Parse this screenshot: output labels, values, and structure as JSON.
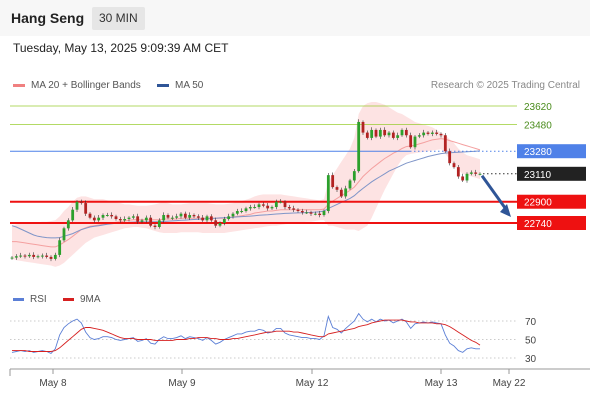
{
  "header": {
    "title": "Hang Seng",
    "timeframe": "30 MIN"
  },
  "datetime": "Tuesday, May 13, 2025 9:09:39 AM CET",
  "credit": "Research © 2025 Trading Central",
  "colors": {
    "bollinger": "#f08080",
    "ma50": "#2f5597",
    "up": "#2ca02c",
    "down": "#b22222",
    "resistance": "#9acd32",
    "pivot": "#4f81e8",
    "support": "#ee1111",
    "rsi": "#5b7fd6",
    "rsi_ma": "#d62020"
  },
  "chart_data": [
    {
      "type": "candlestick",
      "legend": [
        {
          "name": "MA 20 + Bollinger Bands",
          "color": "#f08080"
        },
        {
          "name": "MA 50",
          "color": "#2f5597"
        }
      ],
      "ylim": [
        22460,
        23720
      ],
      "levels": [
        {
          "value": 23620,
          "label": "23620",
          "kind": "resistance"
        },
        {
          "value": 23480,
          "label": "23480",
          "kind": "resistance"
        },
        {
          "value": 23280,
          "label": "23280",
          "kind": "pivot"
        },
        {
          "value": 23110,
          "label": "23110",
          "kind": "last"
        },
        {
          "value": 22900,
          "label": "22900",
          "kind": "support"
        },
        {
          "value": 22740,
          "label": "22740",
          "kind": "support"
        }
      ],
      "x_labels": [
        "May 8",
        "May 9",
        "May 12",
        "May 13",
        "May 22"
      ],
      "close": [
        22480,
        22490,
        22495,
        22490,
        22500,
        22485,
        22490,
        22495,
        22485,
        22470,
        22500,
        22610,
        22700,
        22760,
        22840,
        22900,
        22890,
        22810,
        22780,
        22760,
        22780,
        22800,
        22800,
        22790,
        22770,
        22760,
        22770,
        22780,
        22790,
        22750,
        22760,
        22780,
        22720,
        22710,
        22760,
        22800,
        22780,
        22780,
        22790,
        22810,
        22780,
        22800,
        22790,
        22780,
        22760,
        22790,
        22760,
        22720,
        22740,
        22770,
        22790,
        22810,
        22830,
        22830,
        22850,
        22860,
        22860,
        22880,
        22870,
        22850,
        22860,
        22900,
        22900,
        22860,
        22850,
        22840,
        22830,
        22820,
        22820,
        22810,
        22810,
        22800,
        22830,
        23100,
        23010,
        22990,
        22940,
        23000,
        23060,
        23130,
        23500,
        23420,
        23380,
        23440,
        23390,
        23440,
        23400,
        23420,
        23380,
        23400,
        23440,
        23400,
        23310,
        23390,
        23400,
        23420,
        23410,
        23420,
        23410,
        23400,
        23280,
        23190,
        23160,
        23090,
        23060,
        23110,
        23120,
        23110,
        23110
      ],
      "series": [
        {
          "name": "MA 20 + Bollinger Bands",
          "type": "band",
          "upper": [
            22720,
            22730,
            22735,
            22740,
            22740,
            22745,
            22745,
            22750,
            22750,
            22755,
            22760,
            22790,
            22830,
            22860,
            22900,
            22930,
            22940,
            22940,
            22930,
            22920,
            22920,
            22920,
            22910,
            22900,
            22895,
            22890,
            22880,
            22880,
            22875,
            22870,
            22870,
            22870,
            22875,
            22880,
            22890,
            22900,
            22890,
            22880,
            22880,
            22880,
            22885,
            22890,
            22890,
            22890,
            22890,
            22890,
            22885,
            22880,
            22880,
            22880,
            22885,
            22890,
            22900,
            22905,
            22915,
            22925,
            22940,
            22950,
            22955,
            22955,
            22955,
            22955,
            22955,
            22950,
            22945,
            22940,
            22935,
            22930,
            22925,
            22920,
            22915,
            22910,
            22920,
            23050,
            23100,
            23150,
            23200,
            23250,
            23300,
            23380,
            23560,
            23620,
            23640,
            23650,
            23650,
            23640,
            23630,
            23610,
            23590,
            23570,
            23560,
            23540,
            23520,
            23500,
            23490,
            23480,
            23470,
            23460,
            23440,
            23420,
            23400,
            23370,
            23340,
            23300,
            23270,
            23250,
            23240,
            23230,
            23220
          ],
          "mid": [
            22600,
            22600,
            22595,
            22590,
            22585,
            22580,
            22575,
            22570,
            22565,
            22560,
            22560,
            22575,
            22595,
            22615,
            22640,
            22665,
            22690,
            22705,
            22715,
            22720,
            22725,
            22730,
            22735,
            22740,
            22745,
            22750,
            22755,
            22760,
            22765,
            22765,
            22765,
            22765,
            22765,
            22765,
            22765,
            22770,
            22770,
            22770,
            22770,
            22775,
            22775,
            22775,
            22775,
            22775,
            22775,
            22775,
            22775,
            22775,
            22775,
            22775,
            22780,
            22785,
            22790,
            22795,
            22800,
            22805,
            22815,
            22820,
            22825,
            22830,
            22830,
            22835,
            22840,
            22840,
            22840,
            22840,
            22840,
            22840,
            22840,
            22840,
            22840,
            22840,
            22845,
            22880,
            22905,
            22925,
            22945,
            22965,
            22985,
            23010,
            23050,
            23090,
            23120,
            23150,
            23175,
            23200,
            23225,
            23245,
            23265,
            23280,
            23300,
            23315,
            23320,
            23325,
            23335,
            23345,
            23355,
            23365,
            23370,
            23375,
            23370,
            23360,
            23350,
            23340,
            23330,
            23320,
            23310,
            23300,
            23290
          ],
          "lower": [
            22470,
            22460,
            22455,
            22450,
            22445,
            22440,
            22435,
            22430,
            22425,
            22420,
            22410,
            22420,
            22440,
            22470,
            22500,
            22530,
            22560,
            22590,
            22610,
            22630,
            22640,
            22650,
            22660,
            22670,
            22680,
            22690,
            22700,
            22705,
            22710,
            22710,
            22705,
            22700,
            22690,
            22680,
            22670,
            22665,
            22665,
            22665,
            22665,
            22670,
            22670,
            22670,
            22670,
            22670,
            22665,
            22665,
            22665,
            22665,
            22665,
            22665,
            22670,
            22675,
            22680,
            22685,
            22690,
            22695,
            22700,
            22705,
            22710,
            22715,
            22720,
            22720,
            22725,
            22730,
            22735,
            22740,
            22745,
            22745,
            22750,
            22750,
            22755,
            22760,
            22760,
            22720,
            22720,
            22710,
            22700,
            22690,
            22690,
            22690,
            22680,
            22700,
            22720,
            22780,
            22850,
            22920,
            22990,
            23050,
            23110,
            23170,
            23220,
            23250,
            23260,
            23265,
            23270,
            23275,
            23280,
            23285,
            23290,
            23295,
            23260,
            23220,
            23180,
            23140,
            23110,
            23100,
            23090,
            23080,
            23070
          ]
        },
        {
          "name": "MA 50",
          "type": "line",
          "values": [
            22720,
            22710,
            22695,
            22680,
            22665,
            22650,
            22640,
            22635,
            22630,
            22628,
            22628,
            22630,
            22640,
            22650,
            22660,
            22675,
            22690,
            22700,
            22710,
            22715,
            22720,
            22725,
            22730,
            22735,
            22738,
            22740,
            22742,
            22745,
            22747,
            22748,
            22748,
            22748,
            22748,
            22749,
            22750,
            22752,
            22754,
            22756,
            22758,
            22760,
            22762,
            22764,
            22766,
            22768,
            22770,
            22772,
            22774,
            22776,
            22778,
            22780,
            22782,
            22784,
            22786,
            22788,
            22790,
            22792,
            22795,
            22798,
            22800,
            22802,
            22805,
            22808,
            22810,
            22812,
            22814,
            22815,
            22816,
            22817,
            22818,
            22820,
            22822,
            22825,
            22830,
            22850,
            22865,
            22880,
            22895,
            22910,
            22925,
            22945,
            22975,
            23000,
            23025,
            23050,
            23070,
            23090,
            23110,
            23130,
            23145,
            23160,
            23175,
            23190,
            23200,
            23210,
            23220,
            23230,
            23240,
            23248,
            23255,
            23262,
            23266,
            23268,
            23270,
            23272,
            23274,
            23276,
            23278,
            23280,
            23282
          ]
        }
      ],
      "forecast": {
        "from": 23110,
        "to": 22740
      }
    },
    {
      "type": "line",
      "legend": [
        {
          "name": "RSI",
          "color": "#5b7fd6"
        },
        {
          "name": "9MA",
          "color": "#d62020"
        }
      ],
      "ylim": [
        20,
        80
      ],
      "y_ticks": [
        70,
        50,
        30
      ],
      "series": [
        {
          "name": "RSI",
          "values": [
            36,
            37,
            38,
            37,
            38,
            36,
            37,
            38,
            37,
            35,
            40,
            55,
            63,
            67,
            70,
            72,
            68,
            58,
            52,
            50,
            51,
            53,
            53,
            52,
            50,
            49,
            50,
            51,
            52,
            48,
            49,
            51,
            46,
            45,
            50,
            53,
            51,
            51,
            52,
            54,
            51,
            53,
            52,
            51,
            49,
            52,
            49,
            45,
            47,
            50,
            52,
            54,
            56,
            56,
            58,
            59,
            59,
            61,
            60,
            57,
            58,
            62,
            62,
            57,
            55,
            54,
            53,
            52,
            52,
            51,
            51,
            50,
            54,
            75,
            63,
            61,
            57,
            62,
            66,
            70,
            78,
            72,
            69,
            72,
            69,
            72,
            70,
            71,
            68,
            70,
            72,
            69,
            62,
            67,
            68,
            69,
            68,
            69,
            68,
            67,
            55,
            46,
            43,
            38,
            36,
            40,
            41,
            40,
            40
          ]
        },
        {
          "name": "9MA",
          "values": [
            38,
            38,
            38,
            38,
            37,
            37,
            37,
            37,
            37,
            37,
            38,
            41,
            45,
            49,
            53,
            57,
            61,
            63,
            63,
            62,
            61,
            60,
            58,
            56,
            54,
            52,
            51,
            51,
            51,
            50,
            50,
            50,
            50,
            49,
            49,
            49,
            49,
            49,
            50,
            50,
            50,
            51,
            51,
            52,
            52,
            52,
            51,
            51,
            50,
            50,
            50,
            51,
            51,
            52,
            53,
            54,
            55,
            56,
            57,
            58,
            58,
            59,
            59,
            59,
            59,
            58,
            58,
            57,
            56,
            55,
            54,
            53,
            53,
            56,
            57,
            58,
            59,
            60,
            61,
            62,
            64,
            65,
            66,
            68,
            69,
            70,
            71,
            71,
            71,
            71,
            71,
            70,
            69,
            69,
            68,
            68,
            68,
            68,
            67,
            67,
            66,
            64,
            61,
            58,
            55,
            52,
            49,
            47,
            44
          ]
        }
      ]
    }
  ]
}
